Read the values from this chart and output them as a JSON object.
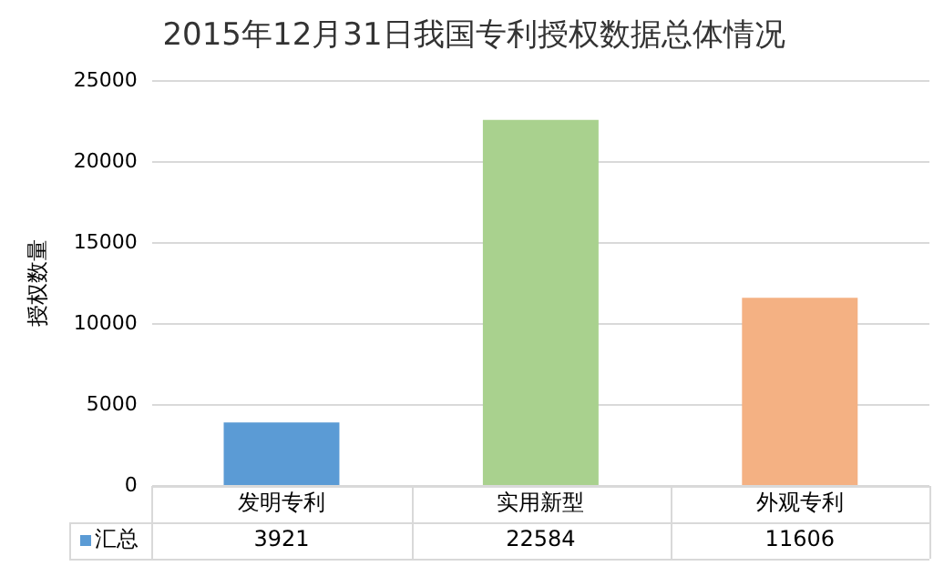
{
  "chart_data": {
    "type": "bar",
    "title": "2015年12月31日我国专利授权数据总体情况",
    "ylabel": "授权数量",
    "categories": [
      "发明专利",
      "实用新型",
      "外观专利"
    ],
    "series": [
      {
        "name": "汇总",
        "color": "#5b9bd5",
        "colors": [
          "#5b9bd5",
          "#a9d18e",
          "#f4b183"
        ],
        "values": [
          3921,
          22584,
          11606
        ]
      }
    ],
    "ylim": [
      0,
      25000
    ],
    "yticks": [
      0,
      5000,
      10000,
      15000,
      20000,
      25000
    ],
    "grid": "y",
    "data_labels": true
  }
}
